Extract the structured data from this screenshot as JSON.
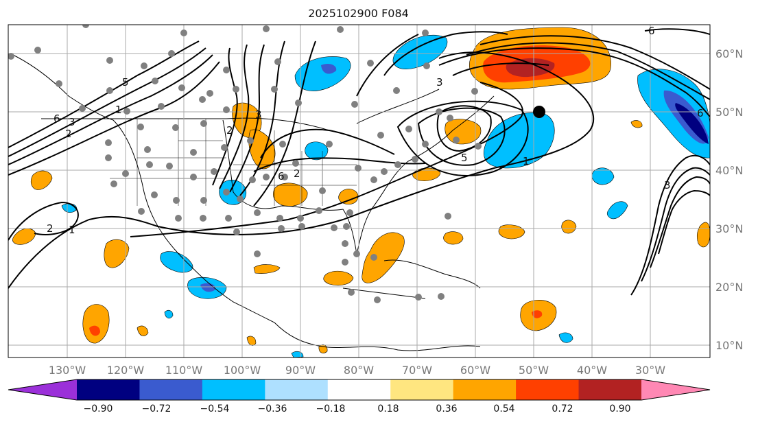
{
  "title": "2025102900 F084",
  "lat_labels": [
    "60°N",
    "50°N",
    "40°N",
    "30°N",
    "20°N",
    "10°N"
  ],
  "lon_labels": [
    "130°W",
    "120°W",
    "110°W",
    "100°W",
    "90°W",
    "80°W",
    "70°W",
    "60°W",
    "50°W",
    "40°W",
    "30°W"
  ],
  "colorbar": {
    "colors": [
      "#9b30d9",
      "#000080",
      "#3a5bcf",
      "#00bfff",
      "#aee0ff",
      "#ffffff",
      "#ffe680",
      "#ffa500",
      "#ff4000",
      "#b22222",
      "#ff88b4"
    ],
    "tick_labels": [
      "−0.90",
      "−0.72",
      "−0.54",
      "−0.36",
      "−0.18",
      "0.18",
      "0.36",
      "0.54",
      "0.72",
      "0.90"
    ]
  },
  "contour_labels": [
    "6",
    "2",
    "3",
    "1",
    "2",
    "1",
    "5",
    "2",
    "3",
    "6",
    "2",
    "5",
    "3",
    "1",
    "3",
    "6",
    "6"
  ]
}
